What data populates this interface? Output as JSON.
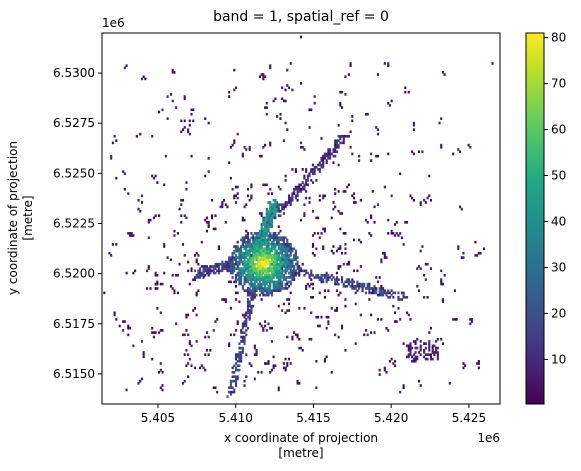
{
  "chart_data": {
    "type": "heatmap",
    "title": "band = 1, spatial_ref = 0",
    "xlabel": "x coordinate of projection\n[metre]",
    "ylabel": "y coordinate of projection\n[metre]",
    "x_offset_label": "1e6",
    "y_offset_label": "1e6",
    "x_ticks": [
      "5.405",
      "5.410",
      "5.415",
      "5.420",
      "5.425"
    ],
    "x_tick_values": [
      5.405,
      5.41,
      5.415,
      5.42,
      5.425
    ],
    "y_ticks": [
      "6.5150",
      "6.5175",
      "6.5200",
      "6.5225",
      "6.5250",
      "6.5275",
      "6.5300"
    ],
    "y_tick_values": [
      6.515,
      6.5175,
      6.52,
      6.5225,
      6.525,
      6.5275,
      6.53
    ],
    "xlim": [
      5.4014,
      5.427
    ],
    "ylim": [
      6.5135,
      6.532
    ],
    "colorbar": {
      "colormap": "viridis",
      "range": [
        0.3,
        81
      ],
      "ticks": [
        "10",
        "20",
        "30",
        "40",
        "50",
        "60",
        "70",
        "80"
      ],
      "tick_values": [
        10,
        20,
        30,
        40,
        50,
        60,
        70,
        80
      ]
    },
    "grid": false,
    "description_of_data": "Raster density: dense urban core around x≈5.411–5.414e6, y≈6.519–6.522e6 with values up to ~80; scattered low-value pixels (mostly < 10) across the extent."
  }
}
